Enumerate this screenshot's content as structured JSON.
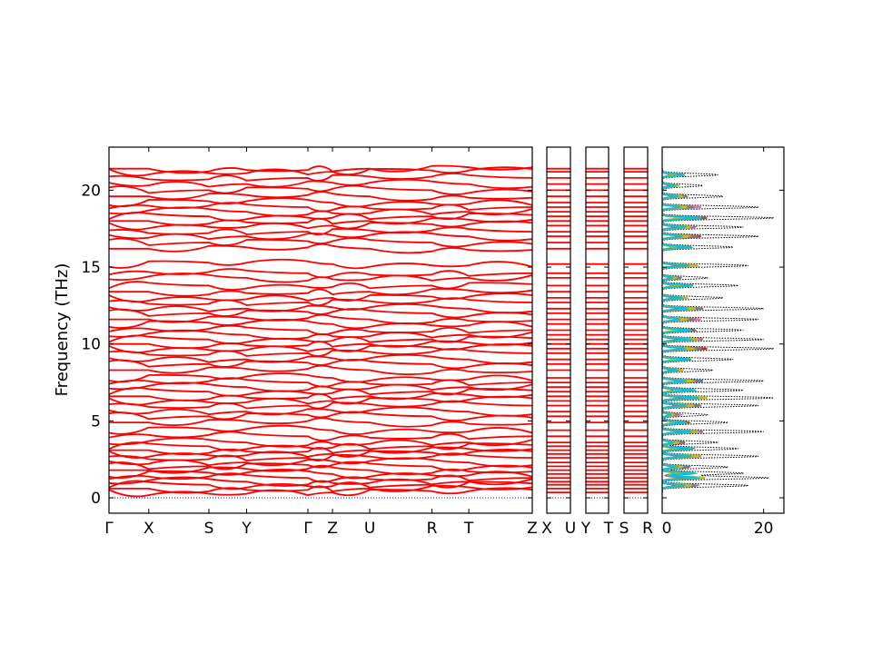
{
  "chart_data": {
    "type": "line",
    "title": "",
    "ylabel": "Frequency (THz)",
    "ylim": [
      -1,
      22.8
    ],
    "yticks": [
      0,
      5,
      10,
      15,
      20
    ],
    "colors": {
      "bands": "#ff0000",
      "zero_line": "#0000cc",
      "dos_total": "#000000",
      "pdos": [
        "#1f77b4",
        "#ff7f0e",
        "#2ca02c",
        "#d62728",
        "#9467bd",
        "#8c564b",
        "#e377c2",
        "#7f7f7f",
        "#bcbd22",
        "#17becf"
      ]
    },
    "band_levels": [
      0.35,
      0.6,
      0.85,
      1.05,
      1.3,
      1.55,
      1.8,
      2.05,
      2.3,
      2.6,
      2.85,
      3.1,
      3.35,
      3.6,
      4.0,
      4.4,
      4.9,
      5.3,
      5.6,
      6.0,
      6.3,
      6.6,
      6.9,
      7.2,
      7.5,
      7.8,
      8.3,
      8.7,
      9.0,
      9.4,
      9.7,
      10.0,
      10.3,
      10.6,
      10.9,
      11.3,
      11.6,
      12.0,
      12.3,
      12.7,
      13.0,
      13.4,
      13.8,
      14.3,
      14.6,
      15.2,
      16.2,
      16.6,
      17.0,
      17.3,
      17.7,
      18.0,
      18.3,
      18.6,
      18.9,
      19.2,
      19.6,
      20.0,
      20.4,
      20.8,
      21.2,
      21.4
    ],
    "panels": [
      {
        "kpoint_labels": [
          "Γ",
          "X",
          "S",
          "Y",
          "Γ",
          "Z",
          "U",
          "R",
          "T",
          "Z"
        ],
        "kpoint_positions": [
          0,
          0.094,
          0.236,
          0.325,
          0.47,
          0.528,
          0.616,
          0.763,
          0.85,
          1.0
        ]
      },
      {
        "kpoint_labels": [
          "X",
          "U"
        ],
        "kpoint_positions": [
          0,
          1
        ]
      },
      {
        "kpoint_labels": [
          "Y",
          "T"
        ],
        "kpoint_positions": [
          0,
          1
        ]
      },
      {
        "kpoint_labels": [
          "S",
          "R"
        ],
        "kpoint_positions": [
          0,
          1
        ]
      }
    ],
    "dos_panel": {
      "xlim": [
        0,
        24
      ],
      "xticks": [
        0,
        20
      ],
      "peaks": [
        {
          "y": 0.8,
          "total": 17
        },
        {
          "y": 1.3,
          "total": 21
        },
        {
          "y": 1.6,
          "total": 16
        },
        {
          "y": 2.0,
          "total": 13
        },
        {
          "y": 2.7,
          "total": 19
        },
        {
          "y": 3.2,
          "total": 15
        },
        {
          "y": 3.6,
          "total": 11
        },
        {
          "y": 4.3,
          "total": 20
        },
        {
          "y": 4.9,
          "total": 13
        },
        {
          "y": 5.4,
          "total": 9
        },
        {
          "y": 6.0,
          "total": 19
        },
        {
          "y": 6.5,
          "total": 22
        },
        {
          "y": 7.0,
          "total": 16
        },
        {
          "y": 7.6,
          "total": 20
        },
        {
          "y": 8.3,
          "total": 10
        },
        {
          "y": 9.0,
          "total": 14
        },
        {
          "y": 9.7,
          "total": 22
        },
        {
          "y": 10.3,
          "total": 20
        },
        {
          "y": 10.9,
          "total": 16
        },
        {
          "y": 11.6,
          "total": 19
        },
        {
          "y": 12.3,
          "total": 20
        },
        {
          "y": 13.0,
          "total": 12
        },
        {
          "y": 13.8,
          "total": 15
        },
        {
          "y": 14.3,
          "total": 9
        },
        {
          "y": 15.1,
          "total": 17
        },
        {
          "y": 16.3,
          "total": 14
        },
        {
          "y": 17.0,
          "total": 19
        },
        {
          "y": 17.6,
          "total": 16
        },
        {
          "y": 18.2,
          "total": 22
        },
        {
          "y": 18.9,
          "total": 19
        },
        {
          "y": 19.6,
          "total": 12
        },
        {
          "y": 20.3,
          "total": 8
        },
        {
          "y": 21.0,
          "total": 11
        }
      ]
    }
  }
}
